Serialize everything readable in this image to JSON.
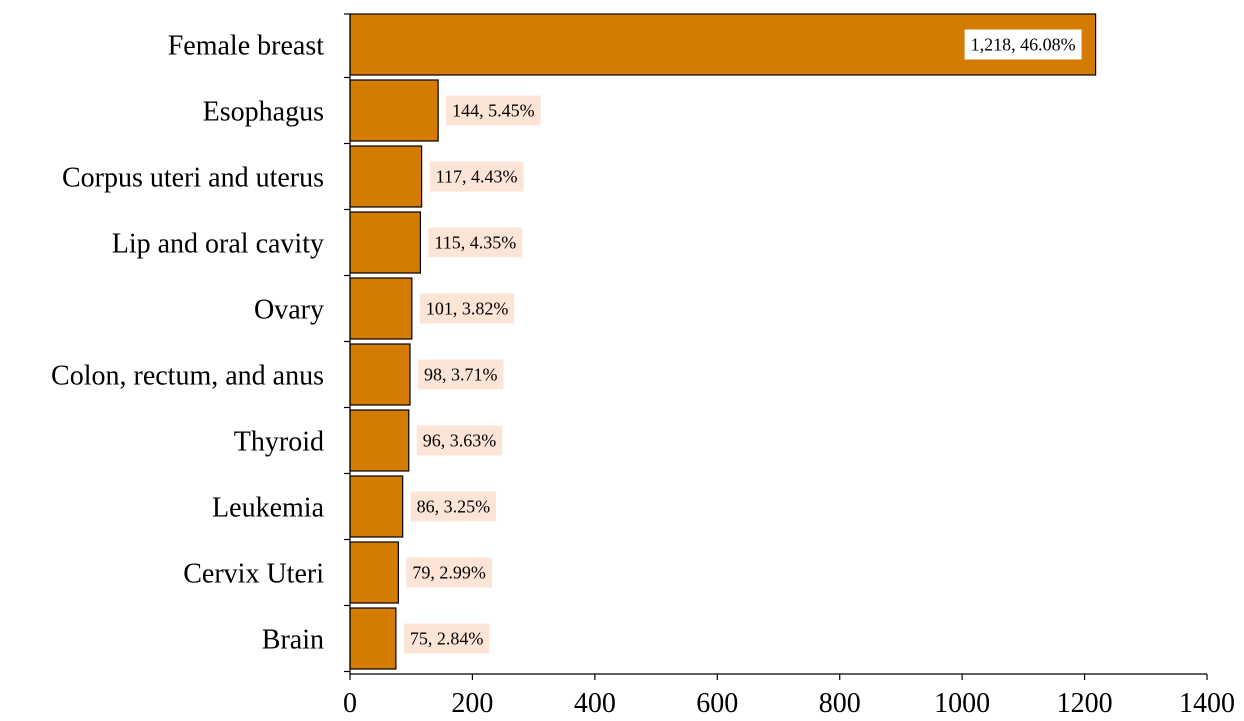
{
  "chart_data": {
    "type": "bar",
    "orientation": "horizontal",
    "categories": [
      "Female breast",
      "Esophagus",
      "Corpus uteri and uterus",
      "Lip and oral cavity",
      "Ovary",
      "Colon, rectum, and anus",
      "Thyroid",
      "Leukemia",
      "Cervix Uteri",
      "Brain"
    ],
    "values": [
      1218,
      144,
      117,
      115,
      101,
      98,
      96,
      86,
      79,
      75
    ],
    "data_labels": [
      "1,218, 46.08%",
      "144, 5.45%",
      "117, 4.43%",
      "115, 4.35%",
      "101, 3.82%",
      "98, 3.71%",
      "96, 3.63%",
      "86, 3.25%",
      "79, 2.99%",
      "75, 2.84%"
    ],
    "xlim": [
      0,
      1400
    ],
    "x_ticks": [
      "0",
      "200",
      "400",
      "600",
      "800",
      "1000",
      "1200",
      "1400"
    ],
    "title": "",
    "xlabel": "",
    "ylabel": "",
    "grid": false,
    "colors": {
      "bar_fill": "#D47B02",
      "bar_stroke": "#000000",
      "label_bg": "#FCE4D6"
    }
  }
}
